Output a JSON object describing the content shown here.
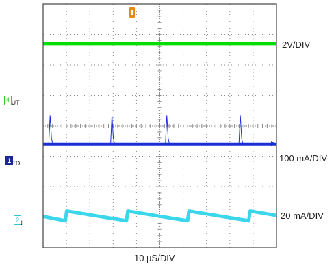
{
  "chart_data": {
    "type": "line",
    "title": "",
    "xlabel": "10 µS/DIV",
    "x_divisions": 10,
    "y_divisions": 8,
    "grid": true,
    "series": [
      {
        "name": "IOUT",
        "scale": "2V/DIV",
        "marker": "4",
        "color": "#00dd00",
        "level_div": 1.3,
        "shape": "flat"
      },
      {
        "name": "ILED",
        "scale": "100 mA/DIV",
        "marker": "1",
        "color": "#1a2fd6",
        "level_div": 4.6,
        "shape": "flat-with-spikes",
        "spike_times_div": [
          0.3,
          2.95,
          5.3,
          8.45
        ],
        "spike_height_div": 0.95
      },
      {
        "name": "IIN",
        "scale": "20 mA/DIV",
        "marker": "2",
        "color": "#3ad6ec",
        "level_div": 6.8,
        "shape": "sawtooth",
        "period_div": 2.62,
        "first_rise_div": 0.95,
        "amplitude_div": 0.32
      }
    ]
  },
  "labels": {
    "iout_main": "I",
    "iout_sub": "OUT",
    "iled_main": "I",
    "iled_sub": "LED",
    "iin_main": "I",
    "iin_sub": "IN"
  },
  "colors": {
    "grid_border": "#444444",
    "grid_dots": "#8a8a8a"
  }
}
